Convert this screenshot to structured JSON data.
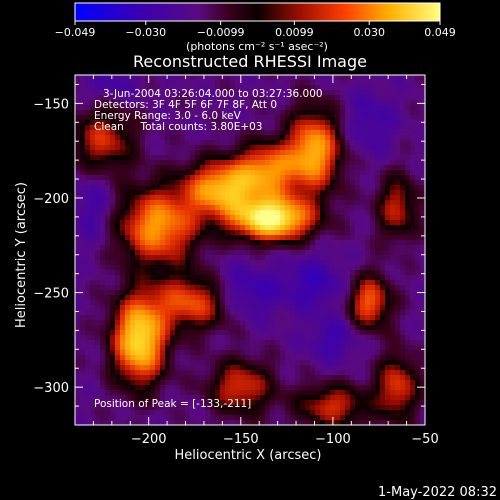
{
  "colorbar": {
    "ticks": [
      "-0.049",
      "-0.030",
      "-0.0099",
      "0.0099",
      "0.030",
      "0.049"
    ],
    "units_label": "(photons cm⁻² s⁻¹ asec⁻²)",
    "min": -0.049,
    "max": 0.049
  },
  "plot": {
    "title": "Reconstructed RHESSI Image",
    "annotations": [
      "3-Jun-2004 03:26:04.000 to 03:27:36.000",
      "Detectors: 3F 4F 5F 6F 7F 8F, Att 0",
      "Energy Range: 3.0 - 6.0 keV",
      "Clean     Total counts: 3.80E+03"
    ],
    "peak_label": "Position of Peak = [-133,-211]"
  },
  "footer": {
    "timestamp": "1-May-2022 08:32"
  },
  "chart_data": {
    "type": "heatmap",
    "title": "Reconstructed RHESSI Image",
    "xlabel": "Heliocentric X (arcsec)",
    "ylabel": "Heliocentric Y (arcsec)",
    "xlim": [
      -240,
      -50
    ],
    "ylim": [
      -320,
      -135
    ],
    "xticks": [
      -200,
      -150,
      -100,
      -50
    ],
    "yticks": [
      -150,
      -200,
      -250,
      -300
    ],
    "x_tick_labels": [
      "-200",
      "-150",
      "-100",
      "-50"
    ],
    "y_tick_labels": [
      "-150",
      "-200",
      "-250",
      "-300"
    ],
    "colormap": "red-temperature",
    "value_range": [
      -0.049,
      0.049
    ],
    "peak": {
      "x": -133,
      "y": -211
    },
    "emission_blobs": [
      {
        "x": -133,
        "y": -211,
        "sx": 15,
        "sy": 8,
        "amp": 0.049
      },
      {
        "x": -160,
        "y": -195,
        "sx": 14,
        "sy": 10,
        "amp": 0.032
      },
      {
        "x": -205,
        "y": -275,
        "sx": 10,
        "sy": 16,
        "amp": 0.042
      },
      {
        "x": -195,
        "y": -215,
        "sx": 15,
        "sy": 14,
        "amp": 0.028
      },
      {
        "x": -110,
        "y": -175,
        "sx": 10,
        "sy": 15,
        "amp": 0.03
      },
      {
        "x": -135,
        "y": -185,
        "sx": 12,
        "sy": 10,
        "amp": 0.022
      },
      {
        "x": -225,
        "y": -170,
        "sx": 12,
        "sy": 12,
        "amp": 0.012
      },
      {
        "x": -175,
        "y": -255,
        "sx": 15,
        "sy": 10,
        "amp": 0.02
      },
      {
        "x": -80,
        "y": -255,
        "sx": 8,
        "sy": 10,
        "amp": 0.02
      },
      {
        "x": -150,
        "y": -300,
        "sx": 12,
        "sy": 10,
        "amp": 0.014
      },
      {
        "x": -100,
        "y": -310,
        "sx": 14,
        "sy": 8,
        "amp": 0.012
      },
      {
        "x": -65,
        "y": -300,
        "sx": 8,
        "sy": 12,
        "amp": 0.014
      },
      {
        "x": -65,
        "y": -205,
        "sx": 8,
        "sy": 12,
        "amp": 0.01
      }
    ],
    "negative_blobs": [
      {
        "x": -150,
        "y": -250,
        "sx": 14,
        "sy": 10,
        "amp": -0.03
      },
      {
        "x": -110,
        "y": -245,
        "sx": 12,
        "sy": 10,
        "amp": -0.025
      },
      {
        "x": -230,
        "y": -205,
        "sx": 8,
        "sy": 14,
        "amp": -0.02
      },
      {
        "x": -80,
        "y": -160,
        "sx": 10,
        "sy": 12,
        "amp": -0.02
      },
      {
        "x": -220,
        "y": -140,
        "sx": 10,
        "sy": 6,
        "amp": -0.018
      },
      {
        "x": -100,
        "y": -275,
        "sx": 10,
        "sy": 8,
        "amp": -0.022
      }
    ]
  }
}
